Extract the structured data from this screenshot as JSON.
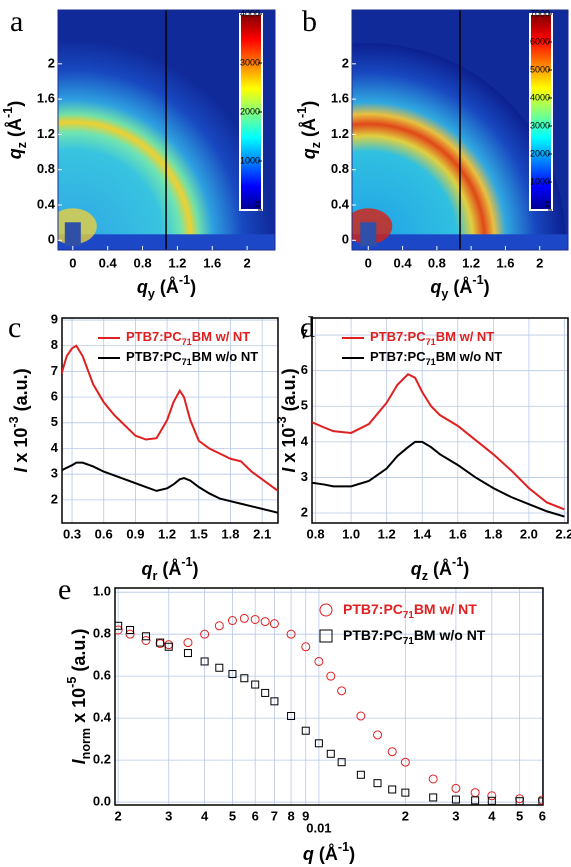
{
  "chart_data": [
    {
      "type": "heatmap",
      "panel_label": "a",
      "x_label": [
        "q",
        "y",
        " (Å",
        "-1",
        ")"
      ],
      "y_label": [
        "q",
        "z",
        " (Å",
        "-1",
        ")"
      ],
      "xlim": [
        -0.17,
        2.32
      ],
      "ylim": [
        -0.11,
        2.61
      ],
      "xticks": [
        0,
        0.4,
        0.8,
        1.2,
        1.6,
        2
      ],
      "yticks": [
        0,
        0.4,
        0.8,
        1.2,
        1.6,
        2
      ],
      "colorbar_lim": [
        0,
        4000
      ],
      "colorbar_ticks": [
        0,
        1000,
        2000,
        3000,
        4000
      ]
    },
    {
      "type": "heatmap",
      "panel_label": "b",
      "x_label": [
        "q",
        "y",
        " (Å",
        "-1",
        ")"
      ],
      "y_label": [
        "q",
        "z",
        " (Å",
        "-1",
        ")"
      ],
      "xlim": [
        -0.19,
        2.33
      ],
      "ylim": [
        -0.11,
        2.61
      ],
      "xticks": [
        0,
        0.4,
        0.8,
        1.2,
        1.6,
        2
      ],
      "yticks": [
        0,
        0.4,
        0.8,
        1.2,
        1.6,
        2
      ],
      "colorbar_lim": [
        0,
        7000
      ],
      "colorbar_ticks": [
        0,
        1000,
        2000,
        3000,
        4000,
        5000,
        6000,
        7000
      ]
    },
    {
      "type": "line",
      "panel_label": "c",
      "x_label": [
        "q",
        "r",
        " (Å",
        "-1",
        ")"
      ],
      "y_label": [
        "I",
        " x 10",
        "-3",
        " (a.u.)"
      ],
      "xlim": [
        0.205,
        2.25
      ],
      "ylim": [
        1.1,
        9.08
      ],
      "xticks": [
        0.3,
        0.6,
        0.9,
        1.2,
        1.5,
        1.8,
        2.1
      ],
      "yticks": [
        2,
        3,
        4,
        5,
        6,
        7,
        8,
        9
      ],
      "grid": true,
      "x": [
        0.2,
        0.25,
        0.3,
        0.34,
        0.4,
        0.5,
        0.6,
        0.7,
        0.8,
        0.9,
        1.0,
        1.1,
        1.2,
        1.26,
        1.32,
        1.36,
        1.42,
        1.5,
        1.6,
        1.7,
        1.8,
        1.9,
        2.0,
        2.1,
        2.2,
        2.25
      ],
      "series": [
        {
          "name": [
            "PTB7:PC",
            "71",
            "BM w/ NT"
          ],
          "color": "#e02020",
          "values": [
            6.9,
            7.6,
            7.9,
            8.0,
            7.6,
            6.5,
            5.8,
            5.3,
            4.9,
            4.5,
            4.35,
            4.4,
            5.1,
            5.8,
            6.25,
            6.0,
            5.1,
            4.3,
            4.0,
            3.8,
            3.6,
            3.5,
            3.1,
            2.8,
            2.5,
            2.35
          ]
        },
        {
          "name": [
            "PTB7:PC",
            "71",
            "BM w/o NT"
          ],
          "color": "#000000",
          "values": [
            3.15,
            3.25,
            3.35,
            3.45,
            3.45,
            3.3,
            3.1,
            2.95,
            2.8,
            2.65,
            2.5,
            2.35,
            2.45,
            2.6,
            2.8,
            2.85,
            2.75,
            2.5,
            2.25,
            2.05,
            1.95,
            1.85,
            1.75,
            1.65,
            1.55,
            1.5
          ]
        }
      ]
    },
    {
      "type": "line",
      "panel_label": "d",
      "x_label": [
        "q",
        "z",
        " (Å",
        "-1",
        ")"
      ],
      "y_label": [
        "I",
        " x 10",
        "-3",
        " (a.u.)"
      ],
      "xlim": [
        0.78,
        2.22
      ],
      "ylim": [
        1.72,
        7.48
      ],
      "xticks": [
        0.8,
        {
          "value": 1,
          "label": "1.0"
        },
        1.2,
        1.4,
        1.6,
        1.8,
        {
          "value": 2,
          "label": "2.0"
        },
        2.2
      ],
      "yticks": [
        2,
        3,
        4,
        5,
        6,
        7
      ],
      "grid": true,
      "x": [
        0.78,
        0.85,
        0.9,
        1.0,
        1.1,
        1.2,
        1.26,
        1.32,
        1.36,
        1.4,
        1.45,
        1.5,
        1.6,
        1.7,
        1.8,
        1.9,
        2.0,
        2.1,
        2.2
      ],
      "series": [
        {
          "name": [
            "PTB7:PC",
            "71",
            "BM w/ NT"
          ],
          "color": "#e02020",
          "values": [
            4.55,
            4.4,
            4.3,
            4.25,
            4.5,
            5.1,
            5.6,
            5.9,
            5.8,
            5.4,
            5.0,
            4.75,
            4.45,
            4.05,
            3.65,
            3.2,
            2.7,
            2.3,
            2.1
          ]
        },
        {
          "name": [
            "PTB7:PC",
            "71",
            "BM w/o NT"
          ],
          "color": "#000000",
          "values": [
            2.85,
            2.8,
            2.75,
            2.75,
            2.9,
            3.25,
            3.6,
            3.85,
            4.0,
            4.0,
            3.85,
            3.65,
            3.35,
            3.0,
            2.7,
            2.45,
            2.25,
            2.05,
            1.9
          ]
        }
      ]
    },
    {
      "type": "scatter",
      "panel_label": "e",
      "x_scale": "log",
      "x_label": [
        "q",
        " (Å",
        "-1",
        ")"
      ],
      "y_label": [
        "I",
        "norm",
        " x 10",
        "-5",
        " (a.u.)"
      ],
      "xlim": [
        0.00195,
        0.0603
      ],
      "ylim": [
        -0.014,
        1.02
      ],
      "xticks": [
        {
          "value": 0.002,
          "label": "2"
        },
        {
          "value": 0.003,
          "label": "3"
        },
        {
          "value": 0.004,
          "label": "4"
        },
        {
          "value": 0.005,
          "label": "5"
        },
        {
          "value": 0.006,
          "label": "6"
        },
        {
          "value": 0.007,
          "label": "7"
        },
        {
          "value": 0.008,
          "label": "8"
        },
        {
          "value": 0.009,
          "label": "9"
        },
        {
          "value": 0.01,
          "label": "0.01"
        },
        {
          "value": 0.02,
          "label": "2"
        },
        {
          "value": 0.03,
          "label": "3"
        },
        {
          "value": 0.04,
          "label": "4"
        },
        {
          "value": 0.05,
          "label": "5"
        },
        {
          "value": 0.06,
          "label": "6"
        }
      ],
      "yticks": [
        {
          "value": 0,
          "label": "0.0"
        },
        0.2,
        0.4,
        0.6,
        0.8,
        {
          "value": 1,
          "label": "1.0"
        }
      ],
      "grid": true,
      "x": [
        0.002,
        0.0022,
        0.0025,
        0.0028,
        0.003,
        0.0035,
        0.004,
        0.0045,
        0.005,
        0.0055,
        0.006,
        0.0065,
        0.007,
        0.008,
        0.009,
        0.01,
        0.011,
        0.012,
        0.014,
        0.016,
        0.018,
        0.02,
        0.025,
        0.03,
        0.035,
        0.04,
        0.05,
        0.06
      ],
      "series": [
        {
          "name": [
            "PTB7:PC",
            "71",
            "BM w/ NT"
          ],
          "color": "#e02020",
          "marker": "circle",
          "values": [
            0.82,
            0.8,
            0.77,
            0.755,
            0.75,
            0.76,
            0.8,
            0.84,
            0.865,
            0.875,
            0.87,
            0.86,
            0.85,
            0.8,
            0.74,
            0.67,
            0.6,
            0.53,
            0.41,
            0.32,
            0.24,
            0.19,
            0.11,
            0.065,
            0.045,
            0.03,
            0.016,
            0.01
          ]
        },
        {
          "name": [
            "PTB7:PC",
            "71",
            "BM w/o NT"
          ],
          "color": "#000000",
          "marker": "square",
          "values": [
            0.84,
            0.82,
            0.79,
            0.76,
            0.74,
            0.71,
            0.67,
            0.64,
            0.61,
            0.59,
            0.56,
            0.52,
            0.48,
            0.41,
            0.34,
            0.28,
            0.23,
            0.19,
            0.13,
            0.09,
            0.06,
            0.045,
            0.022,
            0.012,
            0.008,
            0.006,
            0.004,
            0.003
          ]
        }
      ]
    }
  ]
}
